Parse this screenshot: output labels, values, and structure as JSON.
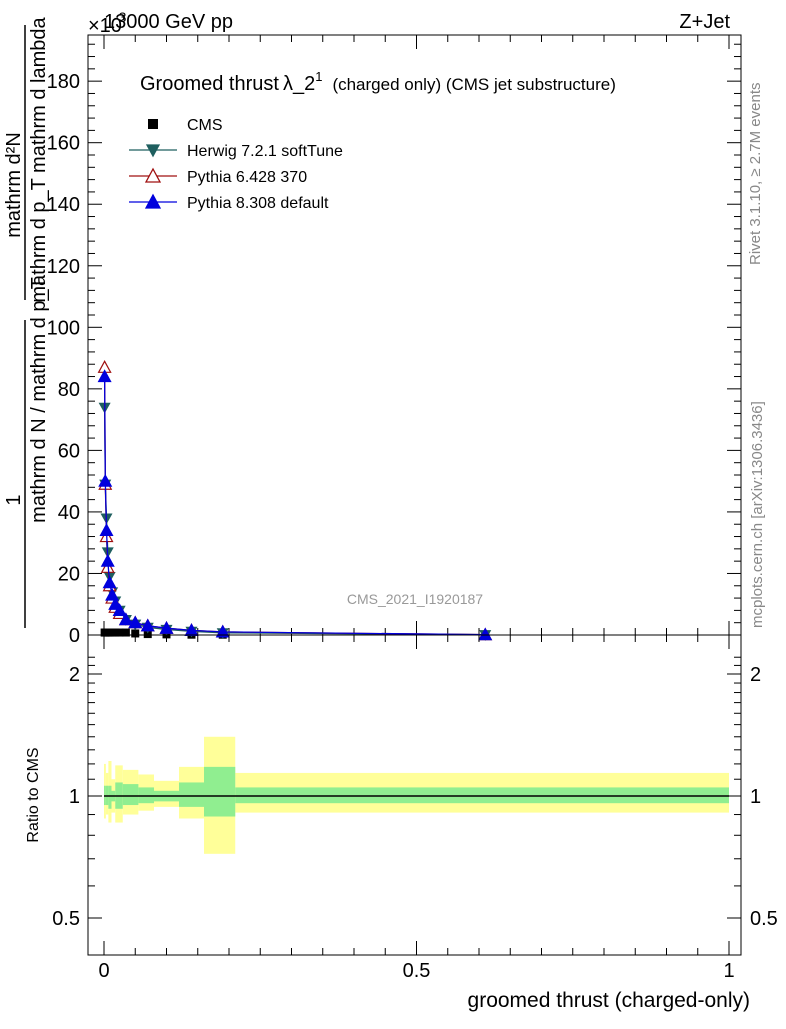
{
  "header": {
    "left": "13000 GeV pp",
    "right": "Z+Jet",
    "exponent_prefix": "×10",
    "exponent_power": "-3"
  },
  "title": {
    "main": "Groomed thrust",
    "lambda": "λ_2",
    "superscript": "1",
    "suffix": "(charged only) (CMS jet substructure)"
  },
  "side_labels": {
    "rivet": "Rivet 3.1.10, ≥ 2.7M events",
    "mcplots": "mcplots.cern.ch [arXiv:1306.3436]"
  },
  "watermark": "CMS_2021_I1920187",
  "ylabel_top": {
    "numerator": "mathrm d²N",
    "denominator": "mathrm d p_T mathrm d lambda",
    "prefactor_num": "1",
    "prefactor_den": "mathrm d N / mathrm d p_T"
  },
  "ylabel_bottom": "Ratio to CMS",
  "xlabel": "groomed thrust (charged-only)",
  "legend": [
    {
      "label": "CMS",
      "color": "#000000",
      "marker": "square"
    },
    {
      "label": "Herwig 7.2.1 softTune",
      "color": "#1f5f5f",
      "marker": "triangle-down"
    },
    {
      "label": "Pythia 6.428 370",
      "color": "#a01010",
      "marker": "triangle-up-open"
    },
    {
      "label": "Pythia 8.308 default",
      "color": "#0000dd",
      "marker": "triangle-up"
    }
  ],
  "chart_data": [
    {
      "type": "line",
      "panel": "main",
      "xlim": [
        0,
        1
      ],
      "ylim": [
        0,
        195
      ],
      "y_scale_note": "×10^-3",
      "y_ticks": [
        0,
        20,
        40,
        60,
        80,
        100,
        120,
        140,
        160,
        180
      ],
      "x": [
        0.001,
        0.002,
        0.004,
        0.006,
        0.009,
        0.013,
        0.018,
        0.025,
        0.035,
        0.05,
        0.07,
        0.1,
        0.14,
        0.19,
        0.61
      ],
      "series": [
        {
          "name": "CMS",
          "values": [
            0.8,
            0.8,
            0.8,
            0.8,
            0.8,
            0.8,
            0.8,
            0.8,
            0.8,
            0.5,
            0.3,
            0.2,
            0.1,
            0.1,
            0.1
          ]
        },
        {
          "name": "Herwig 7.2.1 softTune",
          "values": [
            74,
            49,
            38,
            27,
            19,
            14,
            11,
            8,
            5,
            3.5,
            2.5,
            1.8,
            1.2,
            0.7,
            0.1
          ]
        },
        {
          "name": "Pythia 6.428 370",
          "values": [
            87,
            49,
            32,
            22,
            16,
            12,
            9,
            7,
            5,
            4,
            3,
            2.2,
            1.5,
            1.0,
            0.1
          ]
        },
        {
          "name": "Pythia 8.308 default",
          "values": [
            84,
            50,
            34,
            24,
            17,
            13,
            10,
            8,
            5,
            4,
            3,
            2.2,
            1.5,
            1.0,
            0.1
          ]
        }
      ]
    },
    {
      "type": "area",
      "panel": "ratio",
      "ylabel": "Ratio to CMS",
      "xlim": [
        0,
        1
      ],
      "ylim": [
        0.4,
        2.3
      ],
      "y_ticks": [
        0.5,
        1,
        2
      ],
      "x_ticks": [
        0,
        0.5,
        1
      ],
      "bins": [
        {
          "x0": 0.0,
          "x1": 0.003,
          "inner": [
            0.95,
            1.06
          ],
          "outer": [
            0.88,
            1.2
          ]
        },
        {
          "x0": 0.003,
          "x1": 0.007,
          "inner": [
            0.95,
            1.06
          ],
          "outer": [
            0.9,
            1.14
          ]
        },
        {
          "x0": 0.007,
          "x1": 0.012,
          "inner": [
            0.93,
            1.06
          ],
          "outer": [
            0.86,
            1.22
          ]
        },
        {
          "x0": 0.012,
          "x1": 0.018,
          "inner": [
            0.97,
            1.03
          ],
          "outer": [
            0.91,
            1.1
          ]
        },
        {
          "x0": 0.018,
          "x1": 0.03,
          "inner": [
            0.93,
            1.08
          ],
          "outer": [
            0.86,
            1.19
          ]
        },
        {
          "x0": 0.03,
          "x1": 0.055,
          "inner": [
            0.95,
            1.07
          ],
          "outer": [
            0.9,
            1.16
          ]
        },
        {
          "x0": 0.055,
          "x1": 0.08,
          "inner": [
            0.96,
            1.05
          ],
          "outer": [
            0.92,
            1.13
          ]
        },
        {
          "x0": 0.08,
          "x1": 0.12,
          "inner": [
            0.97,
            1.03
          ],
          "outer": [
            0.94,
            1.09
          ]
        },
        {
          "x0": 0.12,
          "x1": 0.16,
          "inner": [
            0.94,
            1.08
          ],
          "outer": [
            0.88,
            1.18
          ]
        },
        {
          "x0": 0.16,
          "x1": 0.21,
          "inner": [
            0.89,
            1.18
          ],
          "outer": [
            0.72,
            1.4
          ]
        },
        {
          "x0": 0.21,
          "x1": 1.0,
          "inner": [
            0.96,
            1.05
          ],
          "outer": [
            0.91,
            1.14
          ]
        }
      ],
      "reference_line": 1,
      "colors": {
        "inner": "#90ee90",
        "outer": "#ffff99",
        "line": "#000000"
      }
    }
  ]
}
